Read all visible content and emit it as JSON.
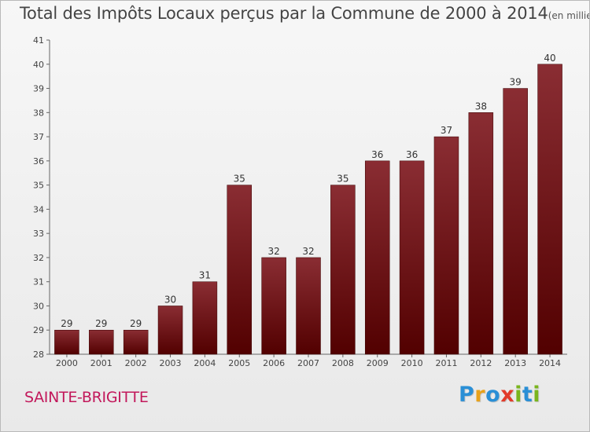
{
  "header": {
    "title": "Total des Impôts Locaux perçus par la Commune de 2000 à 2014",
    "unit": "(en milliers d'€)"
  },
  "commune": "SAINTE-BRIGITTE",
  "logo": {
    "text": "Proxiti",
    "letters": [
      {
        "ch": "P",
        "color": "#2a8fd6"
      },
      {
        "ch": "r",
        "color": "#e8a21b"
      },
      {
        "ch": "o",
        "color": "#2a8fd6"
      },
      {
        "ch": "x",
        "color": "#e23b2a"
      },
      {
        "ch": "i",
        "color": "#7ab51d"
      },
      {
        "ch": "t",
        "color": "#2a8fd6"
      },
      {
        "ch": "i",
        "color": "#7ab51d"
      }
    ]
  },
  "colors": {
    "bar_top": "#8a2d33",
    "bar_bottom": "#520000",
    "commune": "#c2185b"
  },
  "chart_data": {
    "type": "bar",
    "title": "Total des Impôts Locaux perçus par la Commune de 2000 à 2014",
    "categories": [
      "2000",
      "2001",
      "2002",
      "2003",
      "2004",
      "2005",
      "2006",
      "2007",
      "2008",
      "2009",
      "2010",
      "2011",
      "2012",
      "2013",
      "2014"
    ],
    "values": [
      29,
      29,
      29,
      30,
      31,
      35,
      32,
      32,
      35,
      36,
      36,
      37,
      38,
      39,
      40
    ],
    "xlabel": "",
    "ylabel": "",
    "ylim": [
      28,
      41
    ],
    "yticks": [
      28,
      29,
      30,
      31,
      32,
      33,
      34,
      35,
      36,
      37,
      38,
      39,
      40,
      41
    ],
    "grid": false,
    "data_labels": true
  }
}
